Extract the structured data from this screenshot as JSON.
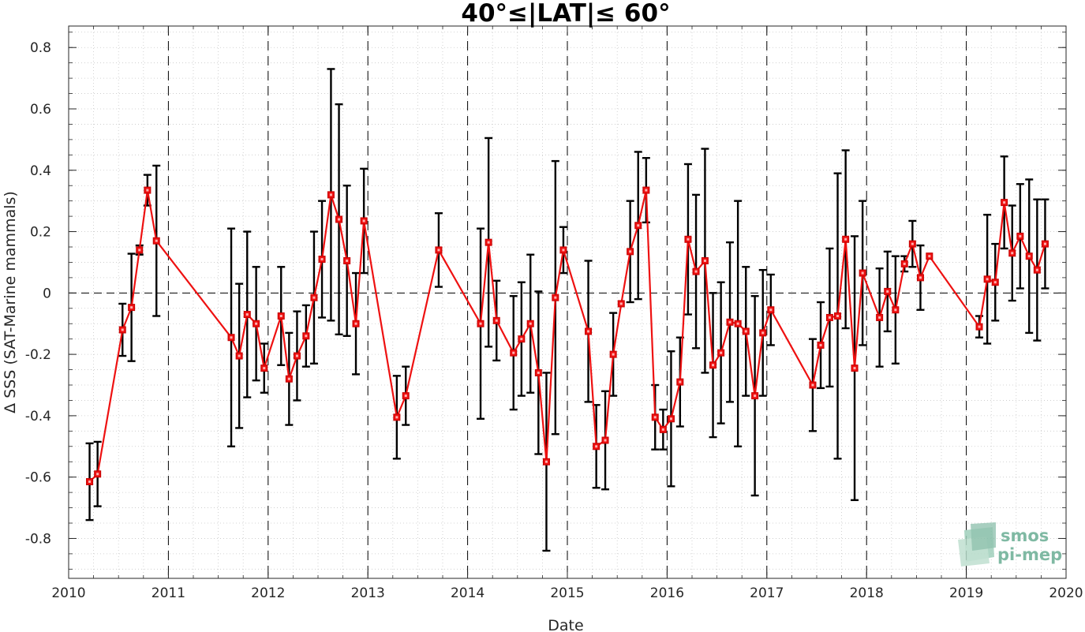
{
  "chart_data": {
    "type": "line",
    "title": "40°≤|LAT|≤ 60°",
    "xlabel": "Date",
    "ylabel": "Δ SSS (SAT-Marine mammals)",
    "xlim": [
      2010,
      2020
    ],
    "ylim": [
      -0.93,
      0.87
    ],
    "x_ticks": [
      2010,
      2011,
      2012,
      2013,
      2014,
      2015,
      2016,
      2017,
      2018,
      2019,
      2020
    ],
    "x_tick_labels": [
      "2010",
      "2011",
      "2012",
      "2013",
      "2014",
      "2015",
      "2016",
      "2017",
      "2018",
      "2019",
      "2020"
    ],
    "y_ticks": [
      -0.8,
      -0.6,
      -0.4,
      -0.2,
      0,
      0.2,
      0.4,
      0.6,
      0.8
    ],
    "y_tick_labels": [
      "-0.8",
      "-0.6",
      "-0.4",
      "-0.2",
      "0",
      "0.2",
      "0.4",
      "0.6",
      "0.8"
    ],
    "grid": "minor dotted",
    "year_boundaries": [
      2011,
      2012,
      2013,
      2014,
      2015,
      2016,
      2017,
      2018,
      2019
    ],
    "zero_line": true,
    "line_color": "#ee1111",
    "errorbar_color": "#000000",
    "series": [
      {
        "x": [
          2010.21,
          2010.29,
          2010.54,
          2010.63,
          2010.71,
          2010.79,
          2010.88,
          2011.63,
          2011.71,
          2011.79,
          2011.88,
          2011.96,
          2012.13,
          2012.21,
          2012.29,
          2012.38,
          2012.46,
          2012.54,
          2012.63,
          2012.71,
          2012.79,
          2012.88,
          2012.96,
          2013.29,
          2013.38,
          2013.71,
          2014.13,
          2014.21,
          2014.29,
          2014.46,
          2014.54,
          2014.63,
          2014.71,
          2014.79,
          2014.88,
          2014.96,
          2015.21,
          2015.29,
          2015.38,
          2015.46,
          2015.54,
          2015.63,
          2015.71,
          2015.79,
          2015.88,
          2015.96,
          2016.04,
          2016.13,
          2016.21,
          2016.29,
          2016.38,
          2016.46,
          2016.54,
          2016.63,
          2016.71,
          2016.79,
          2016.88,
          2016.96,
          2017.04,
          2017.46,
          2017.54,
          2017.63,
          2017.71,
          2017.79,
          2017.88,
          2017.96,
          2018.13,
          2018.21,
          2018.29,
          2018.38,
          2018.46,
          2018.54,
          2018.63,
          2019.13,
          2019.21,
          2019.29,
          2019.38,
          2019.46,
          2019.54,
          2019.63,
          2019.71,
          2019.79
        ],
        "y": [
          -0.615,
          -0.59,
          -0.12,
          -0.047,
          0.14,
          0.335,
          0.17,
          -0.145,
          -0.205,
          -0.07,
          -0.1,
          -0.245,
          -0.075,
          -0.28,
          -0.205,
          -0.14,
          -0.015,
          0.11,
          0.32,
          0.24,
          0.105,
          -0.1,
          0.235,
          -0.405,
          -0.335,
          0.14,
          -0.1,
          0.165,
          -0.09,
          -0.195,
          -0.15,
          -0.1,
          -0.26,
          -0.55,
          -0.015,
          0.14,
          -0.125,
          -0.5,
          -0.48,
          -0.2,
          -0.035,
          0.135,
          0.22,
          0.335,
          -0.405,
          -0.445,
          -0.41,
          -0.29,
          0.175,
          0.07,
          0.105,
          -0.235,
          -0.195,
          -0.095,
          -0.1,
          -0.125,
          -0.335,
          -0.13,
          -0.055,
          -0.3,
          -0.17,
          -0.08,
          -0.075,
          0.175,
          -0.245,
          0.065,
          -0.08,
          0.005,
          -0.055,
          0.095,
          0.16,
          0.05,
          0.12,
          -0.11,
          0.045,
          0.035,
          0.295,
          0.13,
          0.185,
          0.12,
          0.075,
          0.16
        ],
        "err": [
          0.125,
          0.105,
          0.085,
          0.175,
          0.015,
          0.05,
          0.245,
          0.355,
          0.235,
          0.27,
          0.185,
          0.08,
          0.16,
          0.15,
          0.145,
          0.1,
          0.215,
          0.19,
          0.41,
          0.375,
          0.245,
          0.165,
          0.17,
          0.135,
          0.095,
          0.12,
          0.31,
          0.34,
          0.13,
          0.185,
          0.185,
          0.225,
          0.265,
          0.29,
          0.445,
          0.075,
          0.23,
          0.135,
          0.16,
          0.135,
          0.0,
          0.165,
          0.24,
          0.105,
          0.105,
          0.065,
          0.22,
          0.145,
          0.245,
          0.25,
          0.365,
          0.235,
          0.23,
          0.26,
          0.4,
          0.21,
          0.325,
          0.205,
          0.115,
          0.15,
          0.14,
          0.225,
          0.465,
          0.29,
          0.43,
          0.235,
          0.16,
          0.13,
          0.175,
          0.025,
          0.075,
          0.105,
          0.0,
          0.035,
          0.21,
          0.125,
          0.15,
          0.155,
          0.17,
          0.25,
          0.23,
          0.145
        ]
      }
    ]
  },
  "logo": {
    "line1": "smos",
    "line2": "pi-mep",
    "color": "#7fb9a3"
  }
}
